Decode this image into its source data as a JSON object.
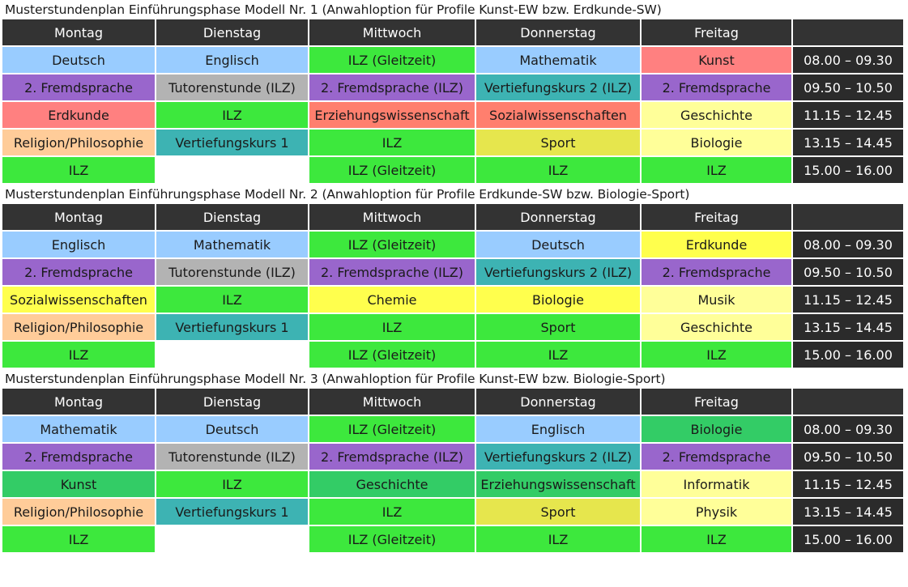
{
  "days": [
    "Montag",
    "Dienstag",
    "Mittwoch",
    "Donnerstag",
    "Freitag"
  ],
  "times": [
    "08.00 – 09.30",
    "09.50 – 10.50",
    "11.15 – 12.45",
    "13.15 – 14.45",
    "15.00 – 16.00"
  ],
  "colors": {
    "blue": "#99ccff",
    "pink": "#ff8080",
    "green": "#3de83d",
    "purple": "#9966cc",
    "gray": "#b3b3b3",
    "teal": "#3db3b3",
    "salmon": "#ff7f6e",
    "lightyellow": "#ffff99",
    "peach": "#ffcc99",
    "olive": "#e6e64d",
    "yellow": "#ffff4d",
    "medgreen": "#33cc66",
    "header": "#333333",
    "time": "#2b2b2b"
  },
  "plans": [
    {
      "caption": "Musterstundenplan Einführungsphase Modell Nr. 1 (Anwahloption für Profile Kunst-EW bzw. Erdkunde-SW)",
      "rows": [
        [
          [
            "Deutsch",
            "blue"
          ],
          [
            "Englisch",
            "blue"
          ],
          [
            "ILZ (Gleitzeit)",
            "green"
          ],
          [
            "Mathematik",
            "blue"
          ],
          [
            "Kunst",
            "pink"
          ]
        ],
        [
          [
            "2. Fremdsprache",
            "purple"
          ],
          [
            "Tutorenstunde (ILZ)",
            "gray"
          ],
          [
            "2. Fremdsprache (ILZ)",
            "purple"
          ],
          [
            "Vertiefungskurs 2 (ILZ)",
            "teal"
          ],
          [
            "2. Fremdsprache",
            "purple"
          ]
        ],
        [
          [
            "Erdkunde",
            "pink"
          ],
          [
            "ILZ",
            "green"
          ],
          [
            "Erziehungswissenschaft",
            "salmon"
          ],
          [
            "Sozialwissenschaften",
            "salmon"
          ],
          [
            "Geschichte",
            "lightyellow"
          ]
        ],
        [
          [
            "Religion/Philosophie",
            "peach"
          ],
          [
            "Vertiefungskurs 1",
            "teal"
          ],
          [
            "ILZ",
            "green"
          ],
          [
            "Sport",
            "olive"
          ],
          [
            "Biologie",
            "lightyellow"
          ]
        ],
        [
          [
            "ILZ",
            "green"
          ],
          [
            "",
            "empty"
          ],
          [
            "ILZ (Gleitzeit)",
            "green"
          ],
          [
            "ILZ",
            "green"
          ],
          [
            "ILZ",
            "green"
          ]
        ]
      ]
    },
    {
      "caption": "Musterstundenplan Einführungsphase Modell Nr. 2 (Anwahloption für Profile Erdkunde-SW bzw. Biologie-Sport)",
      "rows": [
        [
          [
            "Englisch",
            "blue"
          ],
          [
            "Mathematik",
            "blue"
          ],
          [
            "ILZ (Gleitzeit)",
            "green"
          ],
          [
            "Deutsch",
            "blue"
          ],
          [
            "Erdkunde",
            "yellow"
          ]
        ],
        [
          [
            "2. Fremdsprache",
            "purple"
          ],
          [
            "Tutorenstunde (ILZ)",
            "gray"
          ],
          [
            "2. Fremdsprache (ILZ)",
            "purple"
          ],
          [
            "Vertiefungskurs 2 (ILZ)",
            "teal"
          ],
          [
            "2. Fremdsprache",
            "purple"
          ]
        ],
        [
          [
            "Sozialwissenschaften",
            "yellow"
          ],
          [
            "ILZ",
            "green"
          ],
          [
            "Chemie",
            "yellow"
          ],
          [
            "Biologie",
            "yellow"
          ],
          [
            "Musik",
            "lightyellow"
          ]
        ],
        [
          [
            "Religion/Philosophie",
            "peach"
          ],
          [
            "Vertiefungskurs 1",
            "teal"
          ],
          [
            "ILZ",
            "green"
          ],
          [
            "Sport",
            "green"
          ],
          [
            "Geschichte",
            "lightyellow"
          ]
        ],
        [
          [
            "ILZ",
            "green"
          ],
          [
            "",
            "empty"
          ],
          [
            "ILZ (Gleitzeit)",
            "green"
          ],
          [
            "ILZ",
            "green"
          ],
          [
            "ILZ",
            "green"
          ]
        ]
      ]
    },
    {
      "caption": "Musterstundenplan Einführungsphase Modell Nr. 3 (Anwahloption für Profile Kunst-EW bzw. Biologie-Sport)",
      "rows": [
        [
          [
            "Mathematik",
            "blue"
          ],
          [
            "Deutsch",
            "blue"
          ],
          [
            "ILZ (Gleitzeit)",
            "green"
          ],
          [
            "Englisch",
            "blue"
          ],
          [
            "Biologie",
            "medgreen"
          ]
        ],
        [
          [
            "2. Fremdsprache",
            "purple"
          ],
          [
            "Tutorenstunde (ILZ)",
            "gray"
          ],
          [
            "2. Fremdsprache (ILZ)",
            "purple"
          ],
          [
            "Vertiefungskurs 2 (ILZ)",
            "teal"
          ],
          [
            "2. Fremdsprache",
            "purple"
          ]
        ],
        [
          [
            "Kunst",
            "medgreen"
          ],
          [
            "ILZ",
            "green"
          ],
          [
            "Geschichte",
            "medgreen"
          ],
          [
            "Erziehungswissenschaft",
            "medgreen"
          ],
          [
            "Informatik",
            "lightyellow"
          ]
        ],
        [
          [
            "Religion/Philosophie",
            "peach"
          ],
          [
            "Vertiefungskurs 1",
            "teal"
          ],
          [
            "ILZ",
            "green"
          ],
          [
            "Sport",
            "olive"
          ],
          [
            "Physik",
            "lightyellow"
          ]
        ],
        [
          [
            "ILZ",
            "green"
          ],
          [
            "",
            "empty"
          ],
          [
            "ILZ (Gleitzeit)",
            "green"
          ],
          [
            "ILZ",
            "green"
          ],
          [
            "ILZ",
            "green"
          ]
        ]
      ]
    }
  ]
}
